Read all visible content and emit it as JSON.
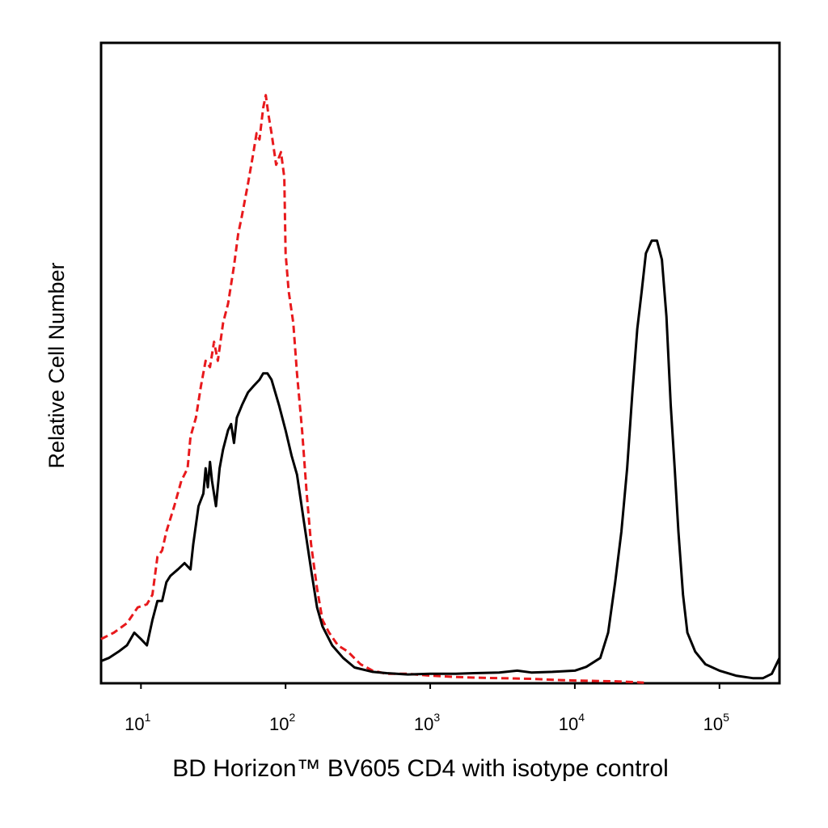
{
  "chart_data": {
    "type": "line",
    "title": "",
    "xlabel": "BD Horizon™ BV605 CD4 with isotype control",
    "ylabel": "Relative Cell Number",
    "x_scale": "log",
    "xlim": [
      5.3,
      260000
    ],
    "ylim": [
      0,
      100
    ],
    "grid": false,
    "legend": "none",
    "x_ticks": [
      {
        "base": "10",
        "exp": "1",
        "value": 10
      },
      {
        "base": "10",
        "exp": "2",
        "value": 100
      },
      {
        "base": "10",
        "exp": "3",
        "value": 1000
      },
      {
        "base": "10",
        "exp": "4",
        "value": 10000
      },
      {
        "base": "10",
        "exp": "5",
        "value": 100000
      }
    ],
    "series": [
      {
        "color": "#e8191c",
        "style": "dashed",
        "points": [
          [
            5.3,
            7
          ],
          [
            6.5,
            8
          ],
          [
            8,
            9.5
          ],
          [
            9.5,
            12
          ],
          [
            11,
            12.5
          ],
          [
            12,
            14
          ],
          [
            13,
            20
          ],
          [
            14,
            21
          ],
          [
            15,
            24
          ],
          [
            17,
            28
          ],
          [
            19,
            32
          ],
          [
            21,
            34
          ],
          [
            22,
            39
          ],
          [
            24,
            42
          ],
          [
            26,
            47
          ],
          [
            28,
            51
          ],
          [
            30,
            50
          ],
          [
            32,
            54
          ],
          [
            34,
            51
          ],
          [
            37,
            57
          ],
          [
            40,
            60
          ],
          [
            44,
            66
          ],
          [
            47,
            71
          ],
          [
            50,
            74
          ],
          [
            55,
            79
          ],
          [
            60,
            84
          ],
          [
            63,
            87
          ],
          [
            66,
            86
          ],
          [
            70,
            91
          ],
          [
            73,
            93
          ],
          [
            76,
            90
          ],
          [
            80,
            87
          ],
          [
            86,
            82
          ],
          [
            93,
            84
          ],
          [
            98,
            80
          ],
          [
            100,
            68
          ],
          [
            105,
            62
          ],
          [
            113,
            57
          ],
          [
            120,
            49
          ],
          [
            130,
            40
          ],
          [
            140,
            30
          ],
          [
            150,
            22
          ],
          [
            165,
            15
          ],
          [
            180,
            10
          ],
          [
            200,
            8
          ],
          [
            230,
            6
          ],
          [
            270,
            5
          ],
          [
            330,
            3
          ],
          [
            400,
            2
          ],
          [
            500,
            1.5
          ],
          [
            700,
            1.5
          ],
          [
            1000,
            1.2
          ],
          [
            1500,
            1.0
          ],
          [
            2000,
            0.9
          ],
          [
            3000,
            0.8
          ],
          [
            5000,
            0.7
          ],
          [
            8000,
            0.5
          ],
          [
            12000,
            0.4
          ],
          [
            20000,
            0.3
          ],
          [
            30000,
            0.1
          ]
        ]
      },
      {
        "color": "#000000",
        "style": "solid",
        "points": [
          [
            5.3,
            3.5
          ],
          [
            6,
            4
          ],
          [
            7,
            5
          ],
          [
            8,
            6
          ],
          [
            9,
            8
          ],
          [
            10,
            7
          ],
          [
            11,
            6
          ],
          [
            12,
            10
          ],
          [
            13,
            13
          ],
          [
            14,
            13
          ],
          [
            15,
            16
          ],
          [
            16,
            17
          ],
          [
            18,
            18
          ],
          [
            20,
            19
          ],
          [
            22,
            18
          ],
          [
            23,
            22
          ],
          [
            25,
            28
          ],
          [
            27,
            30
          ],
          [
            28,
            34
          ],
          [
            29,
            31
          ],
          [
            30,
            35
          ],
          [
            31,
            32
          ],
          [
            33,
            28
          ],
          [
            35,
            34
          ],
          [
            37,
            37
          ],
          [
            40,
            40
          ],
          [
            42,
            41
          ],
          [
            44,
            38
          ],
          [
            46,
            42
          ],
          [
            50,
            44
          ],
          [
            55,
            46
          ],
          [
            60,
            47
          ],
          [
            66,
            48
          ],
          [
            70,
            49
          ],
          [
            75,
            49
          ],
          [
            80,
            48
          ],
          [
            90,
            44
          ],
          [
            100,
            40
          ],
          [
            110,
            36
          ],
          [
            120,
            33
          ],
          [
            135,
            25
          ],
          [
            150,
            18
          ],
          [
            165,
            12
          ],
          [
            180,
            9
          ],
          [
            210,
            6
          ],
          [
            250,
            4
          ],
          [
            300,
            2.5
          ],
          [
            400,
            1.8
          ],
          [
            500,
            1.6
          ],
          [
            700,
            1.4
          ],
          [
            1000,
            1.5
          ],
          [
            1500,
            1.5
          ],
          [
            2000,
            1.6
          ],
          [
            3000,
            1.7
          ],
          [
            4000,
            2.0
          ],
          [
            5000,
            1.7
          ],
          [
            7000,
            1.8
          ],
          [
            10000,
            2.0
          ],
          [
            12000,
            2.6
          ],
          [
            15000,
            4
          ],
          [
            17000,
            8
          ],
          [
            19000,
            16
          ],
          [
            21000,
            24
          ],
          [
            23000,
            34
          ],
          [
            25000,
            46
          ],
          [
            27000,
            56
          ],
          [
            29000,
            62
          ],
          [
            31000,
            68
          ],
          [
            34000,
            70
          ],
          [
            37000,
            70
          ],
          [
            40000,
            67
          ],
          [
            43000,
            58
          ],
          [
            46000,
            44
          ],
          [
            49000,
            34
          ],
          [
            52000,
            24
          ],
          [
            56000,
            14
          ],
          [
            60000,
            8
          ],
          [
            68000,
            5
          ],
          [
            80000,
            3
          ],
          [
            100000,
            2
          ],
          [
            130000,
            1.2
          ],
          [
            170000,
            0.8
          ],
          [
            200000,
            0.8
          ],
          [
            230000,
            1.5
          ],
          [
            260000,
            4
          ]
        ]
      }
    ]
  }
}
